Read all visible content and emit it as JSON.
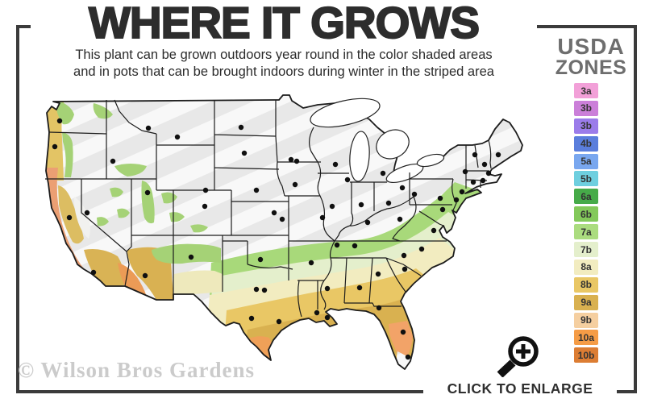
{
  "header": {
    "title": "WHERE IT GROWS",
    "subtitle_line1": "This plant can be grown outdoors year round in the color shaded areas",
    "subtitle_line2": "and in pots that can be brought indoors during winter in the striped area"
  },
  "legend": {
    "title_line1": "USDA",
    "title_line2": "ZONES",
    "zones": [
      {
        "label": "3a",
        "color": "#f2a0d8"
      },
      {
        "label": "3b",
        "color": "#cb7fd9"
      },
      {
        "label": "3b",
        "color": "#9b7cea"
      },
      {
        "label": "4b",
        "color": "#5a7edc"
      },
      {
        "label": "5a",
        "color": "#79a7ef"
      },
      {
        "label": "5b",
        "color": "#6ecfdf"
      },
      {
        "label": "6a",
        "color": "#46ab49"
      },
      {
        "label": "6b",
        "color": "#83c95a"
      },
      {
        "label": "7a",
        "color": "#abdc7f"
      },
      {
        "label": "7b",
        "color": "#e4efcc"
      },
      {
        "label": "8a",
        "color": "#f2ecc0"
      },
      {
        "label": "8b",
        "color": "#e9c765"
      },
      {
        "label": "9a",
        "color": "#d9b150"
      },
      {
        "label": "9b",
        "color": "#f5cfa0"
      },
      {
        "label": "10a",
        "color": "#f59c46"
      },
      {
        "label": "10b",
        "color": "#dc7d33"
      }
    ]
  },
  "map": {
    "description": "USDA zone shaded map of the contiguous United States with striped cold-zone area and city dots"
  },
  "footer": {
    "watermark": "© Wilson Bros Gardens",
    "enlarge_label": "CLICK TO ENLARGE"
  },
  "icons": {
    "magnifier": "magnifying-glass-plus-icon"
  },
  "colors": {
    "frame": "#3b3b3b",
    "title_text": "#2d2d2d",
    "subtitle_text": "#2b2b2b",
    "legend_title": "#6e6e6e",
    "watermark": "#cbcbcb",
    "enlarge_text": "#2f2f2f",
    "map_base": "#e8e8e8",
    "map_stripe": "#f8f8f8",
    "state_border": "#1c1c1c"
  }
}
